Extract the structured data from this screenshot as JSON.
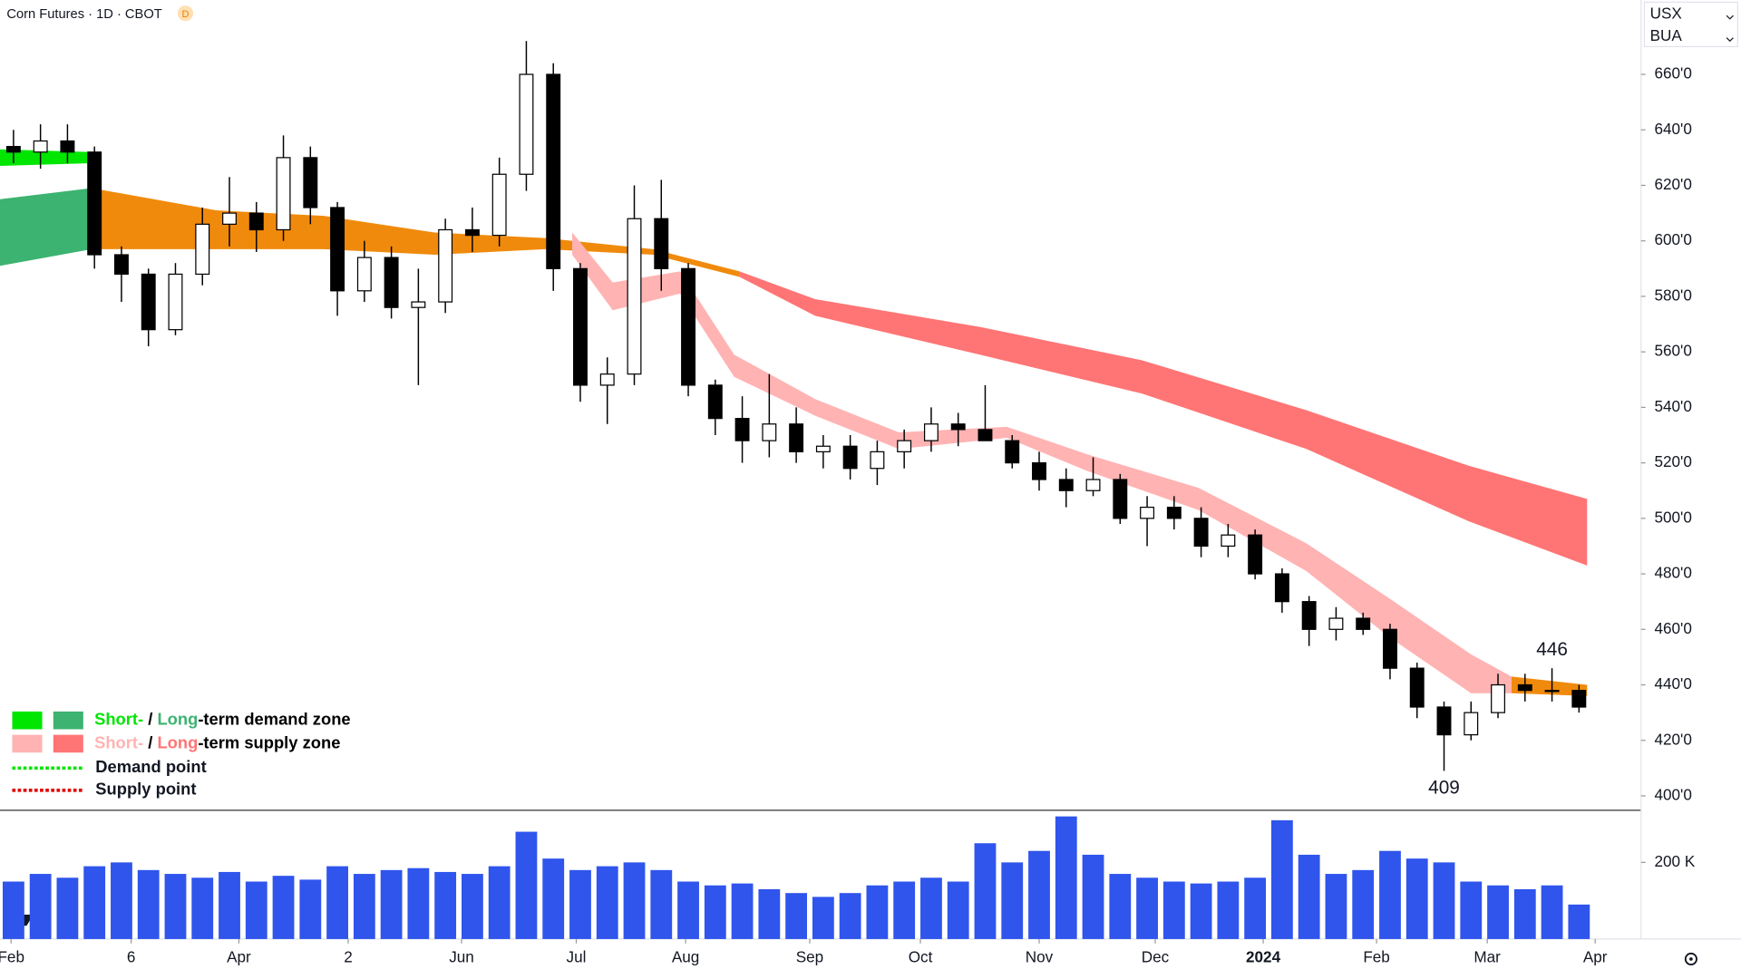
{
  "chart_data": {
    "type": "candlestick",
    "title": "Corn Futures · 1D · CBOT",
    "badge": "D",
    "currency": "USX",
    "unit": "BUA",
    "x": [
      0,
      1,
      2,
      3,
      4,
      5,
      6,
      7,
      8,
      9,
      10,
      11,
      12,
      13,
      14,
      15,
      16,
      17,
      18,
      19,
      20,
      21,
      22,
      23,
      24,
      25,
      26,
      27,
      28,
      29,
      30,
      31,
      32,
      33,
      34,
      35,
      36,
      37,
      38,
      39,
      40,
      41,
      42,
      43,
      44,
      45,
      46,
      47,
      48,
      49,
      50,
      51,
      52,
      53,
      54,
      55,
      56,
      57,
      58
    ],
    "open": [
      634,
      632,
      636,
      632,
      595,
      588,
      568,
      588,
      606,
      610,
      604,
      630,
      612,
      582,
      594,
      576,
      578,
      604,
      602,
      624,
      660,
      590,
      548,
      552,
      608,
      590,
      548,
      536,
      528,
      534,
      524,
      526,
      518,
      524,
      528,
      534,
      532,
      528,
      520,
      514,
      510,
      514,
      500,
      504,
      500,
      490,
      494,
      480,
      470,
      460,
      464,
      460,
      446,
      432,
      422,
      430,
      440,
      438,
      438
    ],
    "high": [
      640,
      642,
      642,
      634,
      598,
      590,
      592,
      612,
      623,
      614,
      638,
      634,
      614,
      600,
      598,
      590,
      608,
      612,
      630,
      672,
      664,
      592,
      558,
      620,
      622,
      592,
      550,
      544,
      552,
      540,
      530,
      530,
      528,
      532,
      540,
      538,
      548,
      530,
      524,
      518,
      522,
      516,
      508,
      508,
      504,
      498,
      496,
      482,
      472,
      468,
      466,
      462,
      448,
      434,
      434,
      444,
      444,
      446,
      440
    ],
    "low": [
      628,
      626,
      628,
      590,
      578,
      562,
      566,
      584,
      598,
      596,
      600,
      606,
      573,
      578,
      572,
      548,
      574,
      596,
      598,
      618,
      582,
      542,
      534,
      548,
      582,
      544,
      530,
      520,
      522,
      520,
      518,
      514,
      512,
      518,
      524,
      526,
      528,
      518,
      510,
      504,
      508,
      498,
      490,
      496,
      486,
      486,
      478,
      466,
      454,
      456,
      458,
      442,
      428,
      409,
      420,
      428,
      434,
      434,
      430
    ],
    "close": [
      632,
      636,
      632,
      595,
      588,
      568,
      588,
      606,
      610,
      604,
      630,
      612,
      582,
      594,
      576,
      578,
      604,
      602,
      624,
      660,
      590,
      548,
      552,
      608,
      590,
      548,
      536,
      528,
      534,
      524,
      526,
      518,
      524,
      528,
      534,
      532,
      528,
      520,
      514,
      510,
      514,
      500,
      504,
      500,
      490,
      494,
      480,
      470,
      460,
      464,
      460,
      446,
      432,
      422,
      430,
      440,
      438,
      438,
      432
    ],
    "volume": [
      150000,
      170000,
      160000,
      190000,
      200000,
      180000,
      170000,
      160000,
      175000,
      150000,
      165000,
      155000,
      190000,
      170000,
      180000,
      185000,
      175000,
      170000,
      190000,
      280000,
      210000,
      180000,
      190000,
      200000,
      180000,
      150000,
      140000,
      145000,
      130000,
      120000,
      110000,
      120000,
      140000,
      150000,
      160000,
      150000,
      250000,
      200000,
      230000,
      320000,
      220000,
      170000,
      160000,
      150000,
      145000,
      150000,
      160000,
      310000,
      220000,
      170000,
      180000,
      230000,
      210000,
      200000,
      150000,
      140000,
      130000,
      140000,
      90000
    ],
    "volume_color": "#2f55ec",
    "xlim": [
      -0.5,
      60.3
    ],
    "xticks": [
      {
        "value": -0.09,
        "label": "Feb"
      },
      {
        "value": 4.36,
        "label": "6"
      },
      {
        "value": 8.35,
        "label": "Apr"
      },
      {
        "value": 12.4,
        "label": "2"
      },
      {
        "value": 16.6,
        "label": "Jun"
      },
      {
        "value": 20.85,
        "label": "Jul"
      },
      {
        "value": 24.9,
        "label": "Aug"
      },
      {
        "value": 29.5,
        "label": "Sep"
      },
      {
        "value": 33.6,
        "label": "Oct"
      },
      {
        "value": 38.0,
        "label": "Nov"
      },
      {
        "value": 42.3,
        "label": "Dec"
      },
      {
        "value": 46.3,
        "label": "2024"
      },
      {
        "value": 50.5,
        "label": "Feb"
      },
      {
        "value": 54.6,
        "label": "Mar"
      },
      {
        "value": 58.6,
        "label": "Apr"
      }
    ],
    "ylim": [
      394.8,
      686.8
    ],
    "yticks": [
      {
        "value": 400,
        "label": "400'0"
      },
      {
        "value": 420,
        "label": "420'0"
      },
      {
        "value": 440,
        "label": "440'0"
      },
      {
        "value": 460,
        "label": "460'0"
      },
      {
        "value": 480,
        "label": "480'0"
      },
      {
        "value": 500,
        "label": "500'0"
      },
      {
        "value": 520,
        "label": "520'0"
      },
      {
        "value": 540,
        "label": "540'0"
      },
      {
        "value": 560,
        "label": "560'0"
      },
      {
        "value": 580,
        "label": "580'0"
      },
      {
        "value": 600,
        "label": "600'0"
      },
      {
        "value": 620,
        "label": "620'0"
      },
      {
        "value": 640,
        "label": "640'0"
      },
      {
        "value": 660,
        "label": "660'0"
      }
    ],
    "vlim": [
      0,
      336000
    ],
    "vticks": [
      {
        "value": 200000,
        "label": "200 K"
      }
    ],
    "zones": [
      {
        "color": "#3cb371",
        "x": [
          -0.5,
          2.9
        ],
        "upper": [
          615,
          619
        ],
        "lower": [
          591,
          597
        ]
      },
      {
        "color": "#f08a0c",
        "x": [
          2.9,
          7.5,
          11.5,
          15.6,
          19.7,
          23.7,
          26.9
        ],
        "upper": [
          619,
          611,
          609,
          603,
          601,
          597,
          589
        ],
        "lower": [
          597,
          597,
          597,
          595,
          597,
          595,
          587
        ]
      },
      {
        "color": "#ff7575",
        "x": [
          26.9,
          29.7,
          35.8,
          41.8,
          47.9,
          53.9,
          58.3
        ],
        "upper": [
          589,
          579,
          569,
          557,
          539,
          519,
          507
        ],
        "lower": [
          587,
          573,
          559,
          545,
          525,
          499,
          483
        ]
      },
      {
        "color": "#00e600",
        "x": [
          -0.5,
          2.9
        ],
        "upper": [
          633,
          632
        ],
        "lower": [
          627,
          628
        ]
      },
      {
        "color": "#ffb3b3",
        "x": [
          20.7,
          22.2,
          24.7,
          26.7,
          29.7,
          32.8,
          36.8,
          39.8,
          43.9,
          47.9,
          51.0,
          54.0,
          55.5
        ],
        "upper": [
          603,
          585,
          589,
          559,
          543,
          531,
          533,
          523,
          511,
          491,
          471,
          451,
          443
        ],
        "lower": [
          595,
          575,
          581,
          551,
          537,
          525,
          529,
          517,
          503,
          481,
          457,
          437,
          437
        ]
      },
      {
        "color": "#f08a0c",
        "x": [
          55.5,
          58.3
        ],
        "upper": [
          443,
          440
        ],
        "lower": [
          437,
          436
        ]
      }
    ],
    "annotations": [
      {
        "value": 446,
        "index": 57,
        "side": "above"
      },
      {
        "value": 409,
        "index": 53,
        "side": "below"
      }
    ],
    "legend": {
      "zones": [
        {
          "short": "Short-",
          "separator": " / ",
          "long": "Long",
          "suffix": "-term demand zone",
          "short_color": "#00e600",
          "long_color": "#3cb371"
        },
        {
          "short": "Short-",
          "separator": " / ",
          "long": "Long",
          "suffix": "-term supply zone",
          "short_color": "#ffb3b3",
          "long_color": "#ff7575"
        }
      ],
      "points": [
        {
          "name": "Demand point",
          "color": "#00e600"
        },
        {
          "name": "Supply point",
          "color": "#e00000"
        }
      ]
    }
  }
}
